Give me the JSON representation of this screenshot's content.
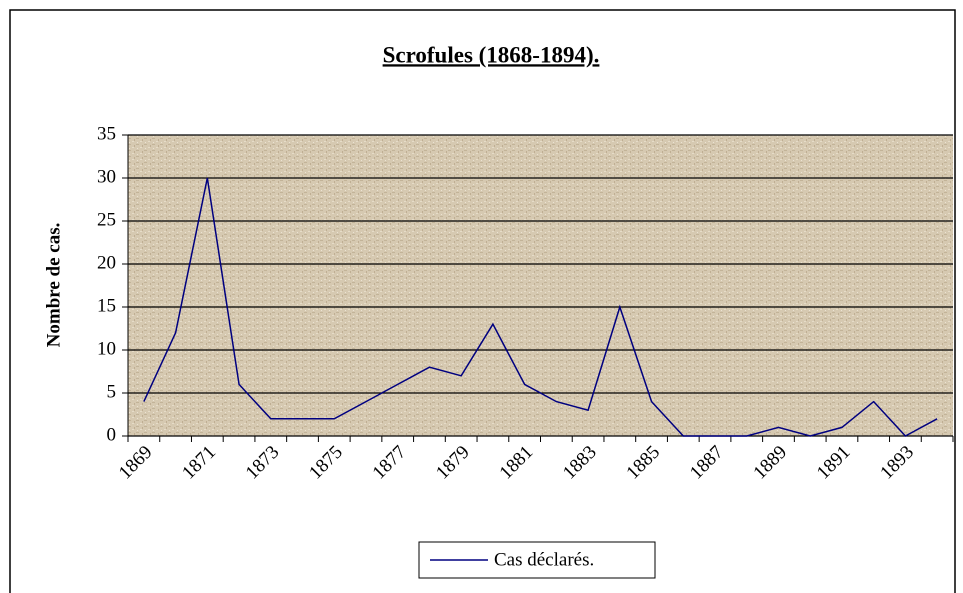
{
  "chart_data": {
    "type": "line",
    "title": "Scrofules (1868-1894).",
    "y_label": "Nombre de cas.",
    "categories": [
      "1869",
      null,
      "1871",
      null,
      "1873",
      null,
      "1875",
      null,
      "1877",
      null,
      "1879",
      null,
      "1881",
      null,
      "1883",
      null,
      "1885",
      null,
      "1887",
      null,
      "1889",
      null,
      "1891",
      null,
      "1893",
      null
    ],
    "series": [
      {
        "name": "Cas déclarés.",
        "color": "#000080",
        "values": [
          4,
          12,
          30,
          6,
          2,
          2,
          2,
          4,
          6,
          8,
          7,
          13,
          6,
          4,
          3,
          15,
          4,
          0,
          0,
          0,
          1,
          0,
          1,
          4,
          0,
          2
        ]
      }
    ],
    "ylim": [
      0,
      35
    ],
    "yticks": [
      0,
      5,
      10,
      15,
      20,
      25,
      30,
      35
    ],
    "grid": true,
    "legend": "bottom"
  }
}
